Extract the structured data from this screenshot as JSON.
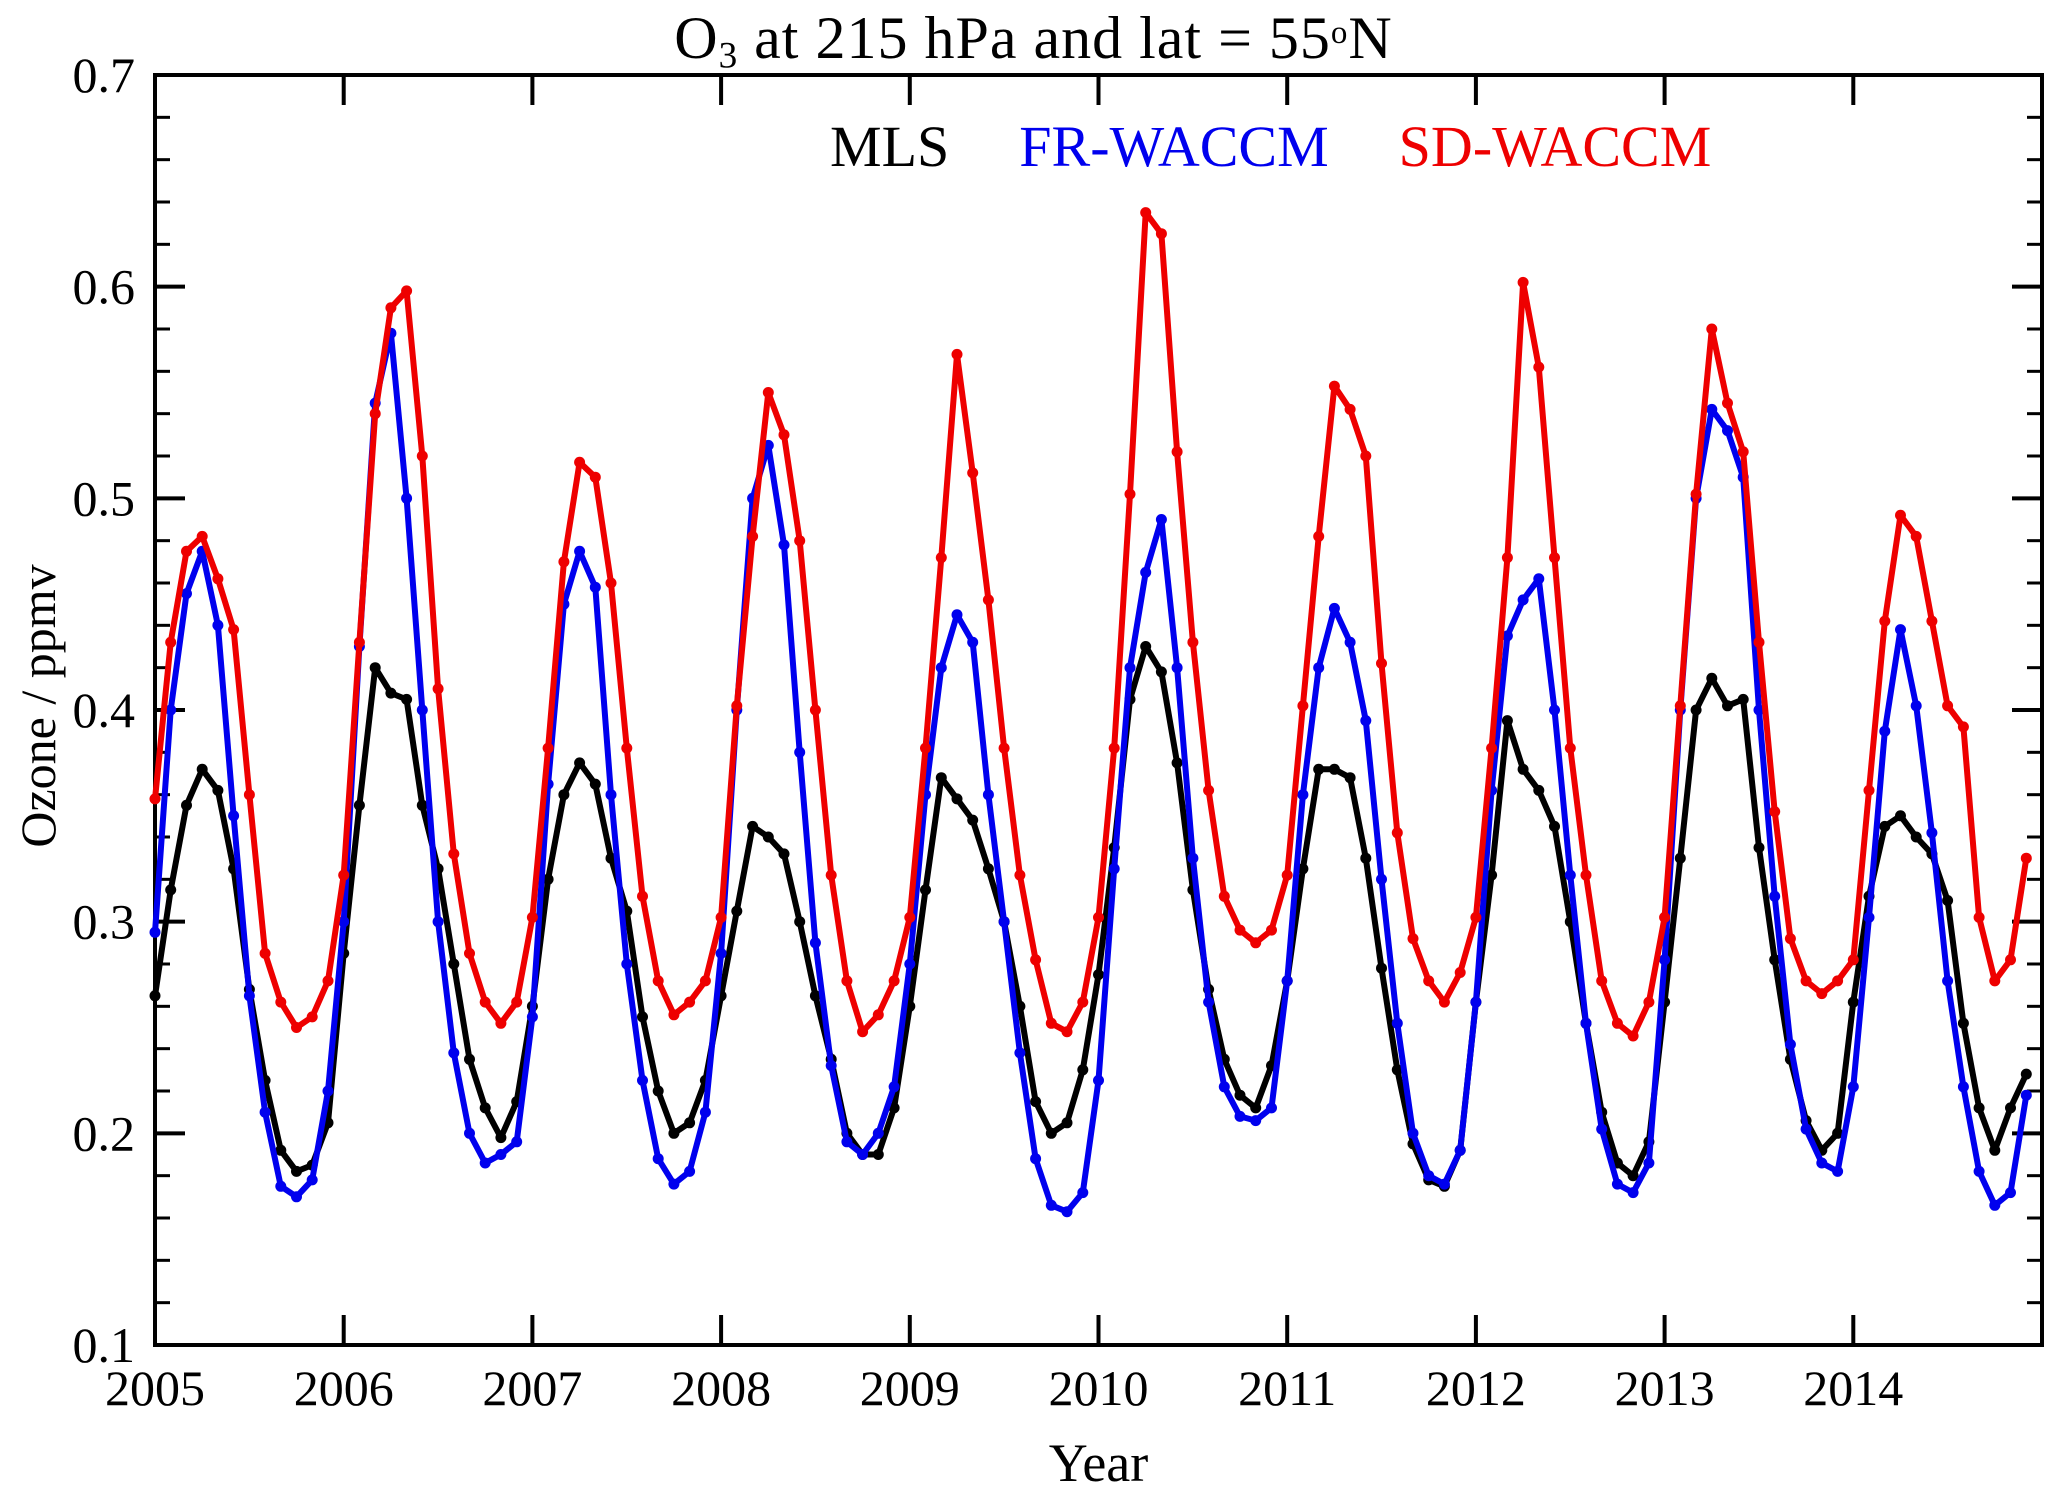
{
  "figure": {
    "title": {
      "pre": "O",
      "sub": "3",
      "mid": " at 215 hPa and lat = 55",
      "sup": "o",
      "post": "N"
    },
    "xlabel": "Year",
    "ylabel": "Ozone / ppmv"
  },
  "chart_data": {
    "type": "line",
    "title": "O3 at 215 hPa and lat = 55 deg N",
    "xlabel": "Year",
    "ylabel": "Ozone / ppmv",
    "xlim": [
      2005,
      2015
    ],
    "ylim": [
      0.1,
      0.7
    ],
    "grid": false,
    "legend_position": "top-inside",
    "x_ticks": [
      2005,
      2006,
      2007,
      2008,
      2009,
      2010,
      2011,
      2012,
      2013,
      2014
    ],
    "x_tick_labels": [
      "2005",
      "2006",
      "2007",
      "2008",
      "2009",
      "2010",
      "2011",
      "2012",
      "2013",
      "2014"
    ],
    "y_ticks": [
      0.1,
      0.2,
      0.3,
      0.4,
      0.5,
      0.6,
      0.7
    ],
    "y_tick_labels": [
      "0.1",
      "0.2",
      "0.3",
      "0.4",
      "0.5",
      "0.6",
      "0.7"
    ],
    "y_minor_interval": 0.02,
    "x_start": 2005.0,
    "x_step": 0.0833333,
    "series": [
      {
        "name": "MLS",
        "color": "#000000",
        "values": [
          0.265,
          0.315,
          0.355,
          0.372,
          0.362,
          0.325,
          0.268,
          0.225,
          0.192,
          0.182,
          0.185,
          0.205,
          0.285,
          0.355,
          0.42,
          0.408,
          0.405,
          0.355,
          0.325,
          0.28,
          0.235,
          0.212,
          0.198,
          0.215,
          0.26,
          0.32,
          0.36,
          0.375,
          0.365,
          0.33,
          0.305,
          0.255,
          0.22,
          0.2,
          0.205,
          0.225,
          0.265,
          0.305,
          0.345,
          0.34,
          0.332,
          0.3,
          0.265,
          0.235,
          0.2,
          0.19,
          0.19,
          0.212,
          0.26,
          0.315,
          0.368,
          0.358,
          0.348,
          0.325,
          0.3,
          0.26,
          0.215,
          0.2,
          0.205,
          0.23,
          0.275,
          0.335,
          0.405,
          0.43,
          0.418,
          0.375,
          0.315,
          0.268,
          0.235,
          0.218,
          0.212,
          0.232,
          0.272,
          0.325,
          0.372,
          0.372,
          0.368,
          0.33,
          0.278,
          0.23,
          0.195,
          0.178,
          0.175,
          0.192,
          0.262,
          0.322,
          0.395,
          0.372,
          0.362,
          0.345,
          0.3,
          0.252,
          0.21,
          0.186,
          0.18,
          0.196,
          0.262,
          0.33,
          0.4,
          0.415,
          0.402,
          0.405,
          0.335,
          0.282,
          0.235,
          0.206,
          0.192,
          0.2,
          0.262,
          0.312,
          0.345,
          0.35,
          0.34,
          0.332,
          0.31,
          0.252,
          0.212,
          0.192,
          0.212,
          0.228
        ]
      },
      {
        "name": "FR-WACCM",
        "color": "#0000ee",
        "values": [
          0.295,
          0.4,
          0.455,
          0.475,
          0.44,
          0.35,
          0.265,
          0.21,
          0.175,
          0.17,
          0.178,
          0.22,
          0.3,
          0.43,
          0.545,
          0.578,
          0.5,
          0.4,
          0.3,
          0.238,
          0.2,
          0.186,
          0.19,
          0.196,
          0.255,
          0.365,
          0.45,
          0.475,
          0.458,
          0.36,
          0.28,
          0.225,
          0.188,
          0.176,
          0.182,
          0.21,
          0.285,
          0.4,
          0.5,
          0.525,
          0.478,
          0.38,
          0.29,
          0.232,
          0.196,
          0.19,
          0.2,
          0.222,
          0.28,
          0.36,
          0.42,
          0.445,
          0.432,
          0.36,
          0.3,
          0.238,
          0.188,
          0.166,
          0.163,
          0.172,
          0.225,
          0.325,
          0.42,
          0.465,
          0.49,
          0.42,
          0.33,
          0.262,
          0.222,
          0.208,
          0.206,
          0.212,
          0.272,
          0.36,
          0.42,
          0.448,
          0.432,
          0.395,
          0.32,
          0.252,
          0.2,
          0.18,
          0.176,
          0.192,
          0.262,
          0.362,
          0.435,
          0.452,
          0.462,
          0.4,
          0.322,
          0.252,
          0.202,
          0.176,
          0.172,
          0.186,
          0.282,
          0.4,
          0.5,
          0.542,
          0.532,
          0.51,
          0.4,
          0.312,
          0.242,
          0.202,
          0.186,
          0.182,
          0.222,
          0.302,
          0.39,
          0.438,
          0.402,
          0.342,
          0.272,
          0.222,
          0.182,
          0.166,
          0.172,
          0.218
        ]
      },
      {
        "name": "SD-WACCM",
        "color": "#ee0000",
        "values": [
          0.358,
          0.432,
          0.475,
          0.482,
          0.462,
          0.438,
          0.36,
          0.285,
          0.262,
          0.25,
          0.255,
          0.272,
          0.322,
          0.432,
          0.54,
          0.59,
          0.598,
          0.52,
          0.41,
          0.332,
          0.285,
          0.262,
          0.252,
          0.262,
          0.302,
          0.382,
          0.47,
          0.517,
          0.51,
          0.46,
          0.382,
          0.312,
          0.272,
          0.256,
          0.262,
          0.272,
          0.302,
          0.402,
          0.482,
          0.55,
          0.53,
          0.48,
          0.4,
          0.322,
          0.272,
          0.248,
          0.256,
          0.272,
          0.302,
          0.382,
          0.472,
          0.568,
          0.512,
          0.452,
          0.382,
          0.322,
          0.282,
          0.252,
          0.248,
          0.262,
          0.302,
          0.382,
          0.502,
          0.635,
          0.625,
          0.522,
          0.432,
          0.362,
          0.312,
          0.296,
          0.29,
          0.296,
          0.322,
          0.402,
          0.482,
          0.553,
          0.542,
          0.52,
          0.422,
          0.342,
          0.292,
          0.272,
          0.262,
          0.276,
          0.302,
          0.382,
          0.472,
          0.602,
          0.562,
          0.472,
          0.382,
          0.322,
          0.272,
          0.252,
          0.246,
          0.262,
          0.302,
          0.402,
          0.502,
          0.58,
          0.545,
          0.522,
          0.432,
          0.352,
          0.292,
          0.272,
          0.266,
          0.272,
          0.282,
          0.362,
          0.442,
          0.492,
          0.482,
          0.442,
          0.402,
          0.392,
          0.302,
          0.272,
          0.282,
          0.33
        ]
      }
    ]
  }
}
